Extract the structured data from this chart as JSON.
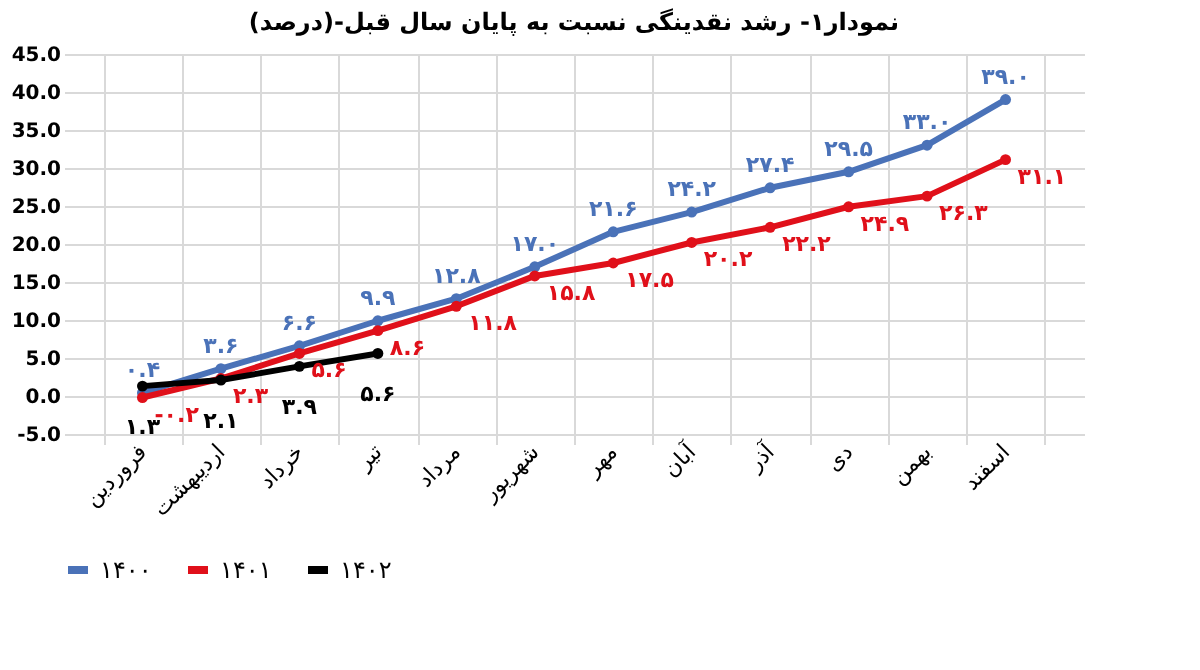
{
  "chart_data": {
    "type": "line",
    "title": "نمودار۱- رشد نقدینگی نسبت به پایان سال قبل-(درصد)",
    "categories": [
      "فروردین",
      "اردیبهشت",
      "خرداد",
      "تیر",
      "مرداد",
      "شهریور",
      "مهر",
      "آبان",
      "آذر",
      "دی",
      "بهمن",
      "اسفند"
    ],
    "series": [
      {
        "name": "۱۴۰۰",
        "color": "#4a72b8",
        "values": [
          0.4,
          3.6,
          6.6,
          9.9,
          12.8,
          17.0,
          21.6,
          24.2,
          27.4,
          29.5,
          33.0,
          39.0
        ],
        "value_labels": [
          "۰.۴",
          "۳.۶",
          "۶.۶",
          "۹.۹",
          "۱۲.۸",
          "۱۷.۰",
          "۲۱.۶",
          "۲۴.۲",
          "۲۷.۴",
          "۲۹.۵",
          "۳۳.۰",
          "۳۹.۰"
        ]
      },
      {
        "name": "۱۴۰۱",
        "color": "#e0101a",
        "values": [
          -0.2,
          2.3,
          5.6,
          8.6,
          11.8,
          15.8,
          17.5,
          20.2,
          22.2,
          24.9,
          26.3,
          31.1
        ],
        "value_labels": [
          "-۰.۲",
          "۲.۳",
          "۵.۶",
          "۸.۶",
          "۱۱.۸",
          "۱۵.۸",
          "۱۷.۵",
          "۲۰.۲",
          "۲۲.۲",
          "۲۴.۹",
          "۲۶.۳",
          "۳۱.۱"
        ]
      },
      {
        "name": "۱۴۰۲",
        "color": "#000000",
        "values": [
          1.3,
          2.1,
          3.9,
          5.6,
          null,
          null,
          null,
          null,
          null,
          null,
          null,
          null
        ],
        "value_labels": [
          "۱.۳",
          "۲.۱",
          "۳.۹",
          "۵.۶",
          null,
          null,
          null,
          null,
          null,
          null,
          null,
          null
        ]
      }
    ],
    "ylim": [
      -5,
      45
    ],
    "yticks": [
      {
        "value": -5,
        "label": "-5.0"
      },
      {
        "value": 0,
        "label": "0.0"
      },
      {
        "value": 5,
        "label": "5.0"
      },
      {
        "value": 10,
        "label": "10.0"
      },
      {
        "value": 15,
        "label": "15.0"
      },
      {
        "value": 20,
        "label": "20.0"
      },
      {
        "value": 25,
        "label": "25.0"
      },
      {
        "value": 30,
        "label": "30.0"
      },
      {
        "value": 35,
        "label": "35.0"
      },
      {
        "value": 40,
        "label": "40.0"
      },
      {
        "value": 45,
        "label": "45.0"
      }
    ],
    "grid": true,
    "legend": "bottom",
    "marker": "circle",
    "line_style": "solid"
  }
}
